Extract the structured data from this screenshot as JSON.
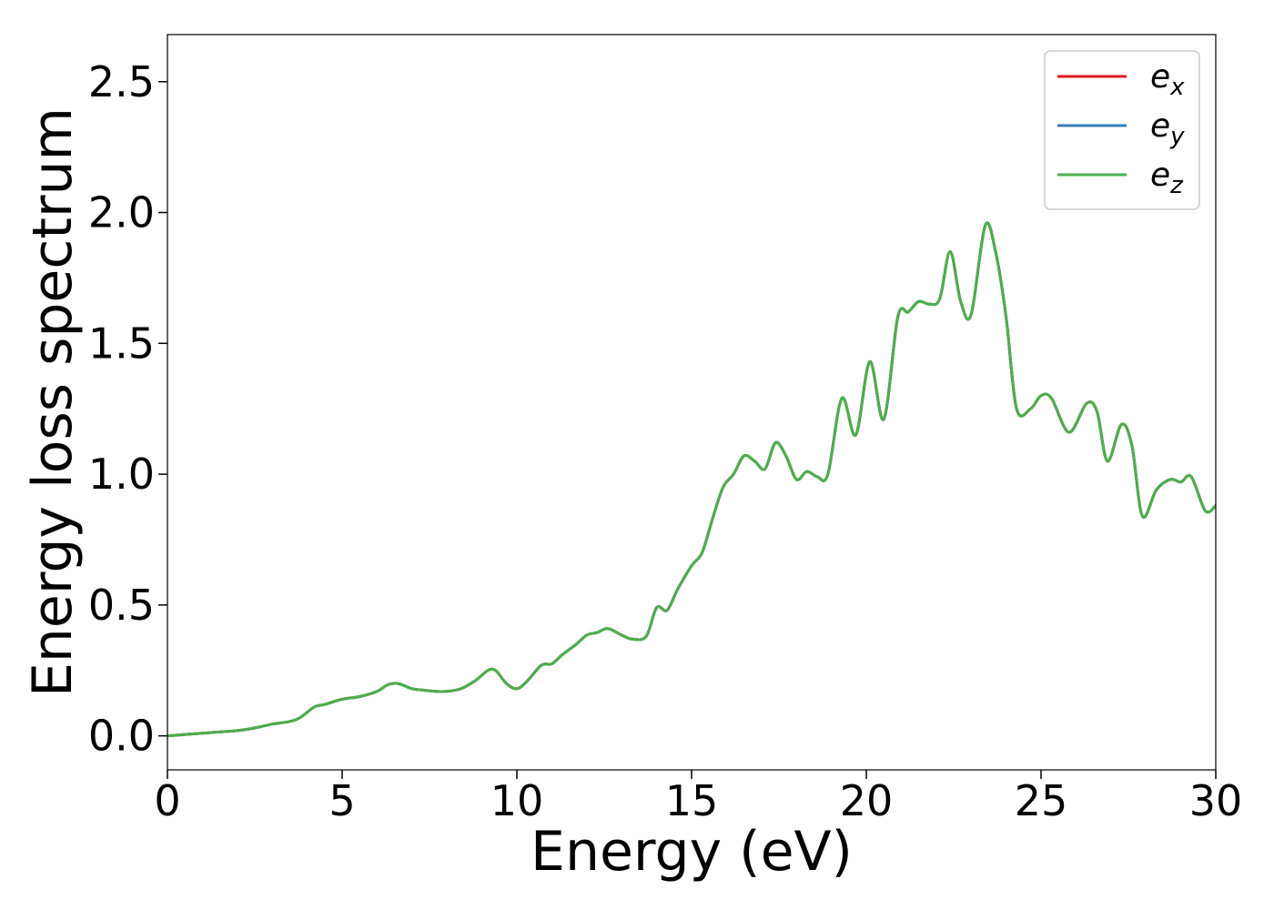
{
  "chart_data": {
    "type": "line",
    "title": "",
    "xlabel": "Energy (eV)",
    "ylabel": "Energy loss spectrum",
    "xlim": [
      0,
      30
    ],
    "ylim": [
      -0.13,
      2.68
    ],
    "xticks": [
      0,
      5,
      10,
      15,
      20,
      25,
      30
    ],
    "xtick_labels": [
      "0",
      "5",
      "10",
      "15",
      "20",
      "25",
      "30"
    ],
    "yticks": [
      0.0,
      0.5,
      1.0,
      1.5,
      2.0,
      2.5
    ],
    "ytick_labels": [
      "0.0",
      "0.5",
      "1.0",
      "1.5",
      "2.0",
      "2.5"
    ],
    "grid": false,
    "legend_position": "top-right",
    "x": [
      0,
      0.5,
      1,
      1.5,
      2,
      2.5,
      3,
      3.5,
      3.8,
      4.2,
      4.5,
      5,
      5.5,
      6,
      6.3,
      6.6,
      7,
      7.3,
      7.7,
      8,
      8.4,
      8.8,
      9.3,
      9.7,
      10,
      10.3,
      10.7,
      11,
      11.3,
      11.7,
      12,
      12.3,
      12.6,
      13,
      13.3,
      13.7,
      14,
      14.3,
      14.6,
      15,
      15.3,
      15.6,
      15.9,
      16.2,
      16.5,
      16.8,
      17.1,
      17.4,
      17.7,
      18.0,
      18.3,
      18.6,
      18.9,
      19.3,
      19.7,
      20.1,
      20.5,
      20.9,
      21.2,
      21.5,
      21.8,
      22.1,
      22.4,
      22.7,
      23.0,
      23.4,
      23.7,
      24.0,
      24.3,
      24.7,
      25.0,
      25.3,
      25.8,
      26.3,
      26.6,
      26.9,
      27.3,
      27.6,
      27.9,
      28.3,
      28.7,
      29.0,
      29.3,
      29.7,
      30
    ],
    "series": [
      {
        "name": "e_x",
        "color": "#e41a1c",
        "values": [
          0.0,
          0.005,
          0.01,
          0.015,
          0.02,
          0.03,
          0.045,
          0.055,
          0.07,
          0.11,
          0.12,
          0.14,
          0.15,
          0.17,
          0.195,
          0.2,
          0.18,
          0.175,
          0.17,
          0.17,
          0.18,
          0.21,
          0.255,
          0.2,
          0.18,
          0.21,
          0.27,
          0.275,
          0.31,
          0.35,
          0.385,
          0.395,
          0.41,
          0.385,
          0.37,
          0.38,
          0.49,
          0.48,
          0.56,
          0.65,
          0.7,
          0.83,
          0.95,
          1.0,
          1.07,
          1.05,
          1.02,
          1.12,
          1.07,
          0.98,
          1.01,
          0.99,
          1.0,
          1.29,
          1.15,
          1.43,
          1.21,
          1.6,
          1.62,
          1.66,
          1.65,
          1.67,
          1.85,
          1.66,
          1.61,
          1.95,
          1.85,
          1.6,
          1.25,
          1.25,
          1.3,
          1.29,
          1.16,
          1.27,
          1.24,
          1.05,
          1.19,
          1.11,
          0.84,
          0.94,
          0.98,
          0.97,
          0.99,
          0.86,
          0.88
        ]
      },
      {
        "name": "e_y",
        "color": "#377eb8",
        "values": [
          0.0,
          0.005,
          0.01,
          0.015,
          0.02,
          0.03,
          0.045,
          0.055,
          0.07,
          0.11,
          0.12,
          0.14,
          0.15,
          0.17,
          0.195,
          0.2,
          0.18,
          0.175,
          0.17,
          0.17,
          0.18,
          0.21,
          0.255,
          0.2,
          0.18,
          0.21,
          0.27,
          0.275,
          0.31,
          0.35,
          0.385,
          0.395,
          0.41,
          0.385,
          0.37,
          0.38,
          0.49,
          0.48,
          0.56,
          0.65,
          0.7,
          0.83,
          0.95,
          1.0,
          1.07,
          1.05,
          1.02,
          1.12,
          1.07,
          0.98,
          1.01,
          0.99,
          1.0,
          1.29,
          1.15,
          1.43,
          1.21,
          1.6,
          1.62,
          1.66,
          1.65,
          1.67,
          1.85,
          1.66,
          1.61,
          1.95,
          1.85,
          1.6,
          1.25,
          1.25,
          1.3,
          1.29,
          1.16,
          1.27,
          1.24,
          1.05,
          1.19,
          1.11,
          0.84,
          0.94,
          0.98,
          0.97,
          0.99,
          0.86,
          0.88
        ]
      },
      {
        "name": "e_z",
        "color": "#4daf4a",
        "values": [
          0.0,
          0.005,
          0.01,
          0.015,
          0.02,
          0.03,
          0.045,
          0.055,
          0.07,
          0.11,
          0.12,
          0.14,
          0.15,
          0.17,
          0.195,
          0.2,
          0.18,
          0.175,
          0.17,
          0.17,
          0.18,
          0.21,
          0.255,
          0.2,
          0.18,
          0.21,
          0.27,
          0.275,
          0.31,
          0.35,
          0.385,
          0.395,
          0.41,
          0.385,
          0.37,
          0.38,
          0.49,
          0.48,
          0.56,
          0.65,
          0.7,
          0.83,
          0.95,
          1.0,
          1.07,
          1.05,
          1.02,
          1.12,
          1.07,
          0.98,
          1.01,
          0.99,
          1.0,
          1.29,
          1.15,
          1.43,
          1.21,
          1.6,
          1.62,
          1.66,
          1.65,
          1.67,
          1.85,
          1.66,
          1.61,
          1.95,
          1.85,
          1.6,
          1.25,
          1.25,
          1.3,
          1.29,
          1.16,
          1.27,
          1.24,
          1.05,
          1.19,
          1.11,
          0.84,
          0.94,
          0.98,
          0.97,
          0.99,
          0.86,
          0.88
        ]
      }
    ],
    "legend": [
      {
        "base": "e",
        "sub": "x",
        "color": "#e41a1c"
      },
      {
        "base": "e",
        "sub": "y",
        "color": "#377eb8"
      },
      {
        "base": "e",
        "sub": "z",
        "color": "#4daf4a"
      }
    ]
  }
}
